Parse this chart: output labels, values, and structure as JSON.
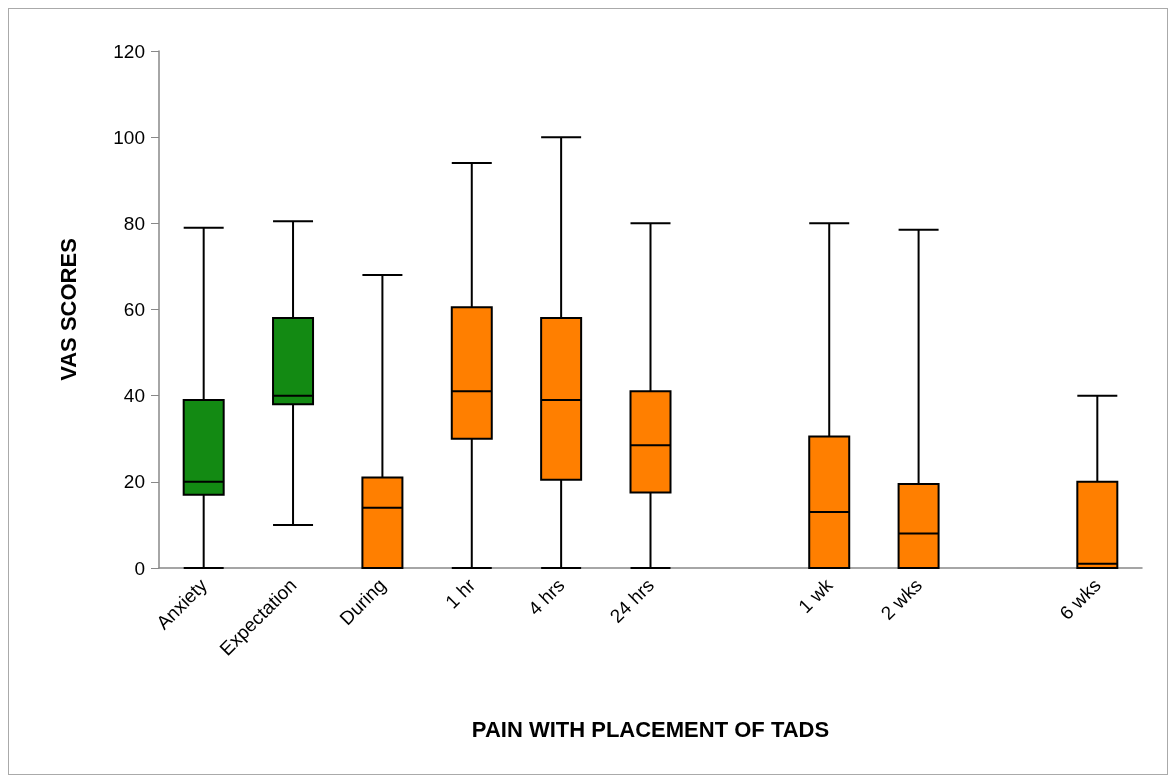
{
  "chart_data": {
    "type": "box",
    "xlabel": "PAIN WITH PLACEMENT OF TADS",
    "ylabel": "VAS SCORES",
    "categories": [
      "Anxiety",
      "Expectation",
      "During",
      "1 hr",
      "4 hrs",
      "24 hrs",
      null,
      "1 wk",
      "2 wks",
      null,
      "6 wks"
    ],
    "series": [
      {
        "color": "#138a13",
        "boxes": [
          {
            "low": 0,
            "q1": 17,
            "median": 20,
            "q3": 39,
            "high": 79
          },
          {
            "low": 10,
            "q1": 38,
            "median": 40,
            "q3": 58,
            "high": 80.5
          },
          null,
          null,
          null,
          null,
          null,
          null,
          null,
          null,
          null
        ]
      },
      {
        "color": "#ff7f00",
        "boxes": [
          null,
          null,
          {
            "low": 0,
            "q1": 0,
            "median": 14,
            "q3": 21,
            "high": 68
          },
          {
            "low": 0,
            "q1": 30,
            "median": 41,
            "q3": 60.5,
            "high": 94
          },
          {
            "low": 0,
            "q1": 20.5,
            "median": 39,
            "q3": 58,
            "high": 100
          },
          {
            "low": 0,
            "q1": 17.5,
            "median": 28.5,
            "q3": 41,
            "high": 80
          },
          null,
          {
            "low": 0,
            "q1": 0,
            "median": 13,
            "q3": 30.5,
            "high": 80
          },
          {
            "low": 0,
            "q1": 0,
            "median": 8,
            "q3": 19.5,
            "high": 78.5
          },
          null,
          {
            "low": 0,
            "q1": 0,
            "median": 1,
            "q3": 20,
            "high": 40
          }
        ]
      }
    ],
    "ylim": [
      0,
      120
    ],
    "yticks": [
      0,
      20,
      40,
      60,
      80,
      100,
      120
    ]
  }
}
